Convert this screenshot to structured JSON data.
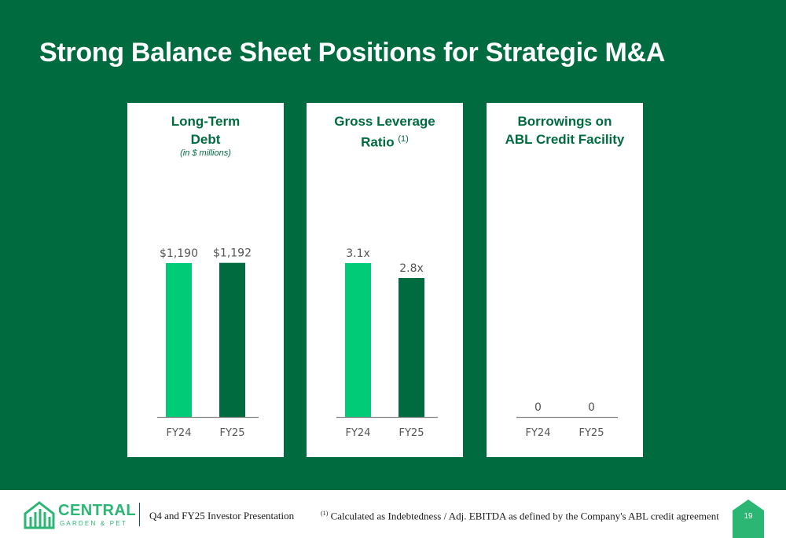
{
  "title": "Strong Balance Sheet Positions for Strategic M&A",
  "chart_data": [
    {
      "type": "bar",
      "title": "Long-Term Debt",
      "subtitle": "(in $ millions)",
      "categories": [
        "FY24",
        "FY25"
      ],
      "values": [
        1190,
        1192
      ],
      "value_labels": [
        "$1,190",
        "$1,192"
      ],
      "colors": [
        "#00cc77",
        "#006b3f"
      ]
    },
    {
      "type": "bar",
      "title": "Gross Leverage Ratio",
      "title_footnote": "(1)",
      "categories": [
        "FY24",
        "FY25"
      ],
      "values": [
        3.1,
        2.8
      ],
      "value_labels": [
        "3.1x",
        "2.8x"
      ],
      "colors": [
        "#00cc77",
        "#006b3f"
      ]
    },
    {
      "type": "bar",
      "title": "Borrowings on ABL Credit Facility",
      "categories": [
        "FY24",
        "FY25"
      ],
      "values": [
        0,
        0
      ],
      "value_labels": [
        "0",
        "0"
      ],
      "colors": [
        "#00cc77",
        "#006b3f"
      ]
    }
  ],
  "footer": {
    "logo_word": "CENTRAL",
    "logo_sub": "GARDEN & PET",
    "presentation": "Q4 and FY25 Investor Presentation",
    "footnote_marker": "(1)",
    "footnote": "Calculated as Indebtedness / Adj. EBITDA as defined by the Company's ABL credit agreement",
    "page": "19"
  },
  "colors": {
    "background": "#006b3f",
    "accent_light": "#00cc77",
    "accent_dark": "#006b3f",
    "logo": "#2bb673"
  }
}
